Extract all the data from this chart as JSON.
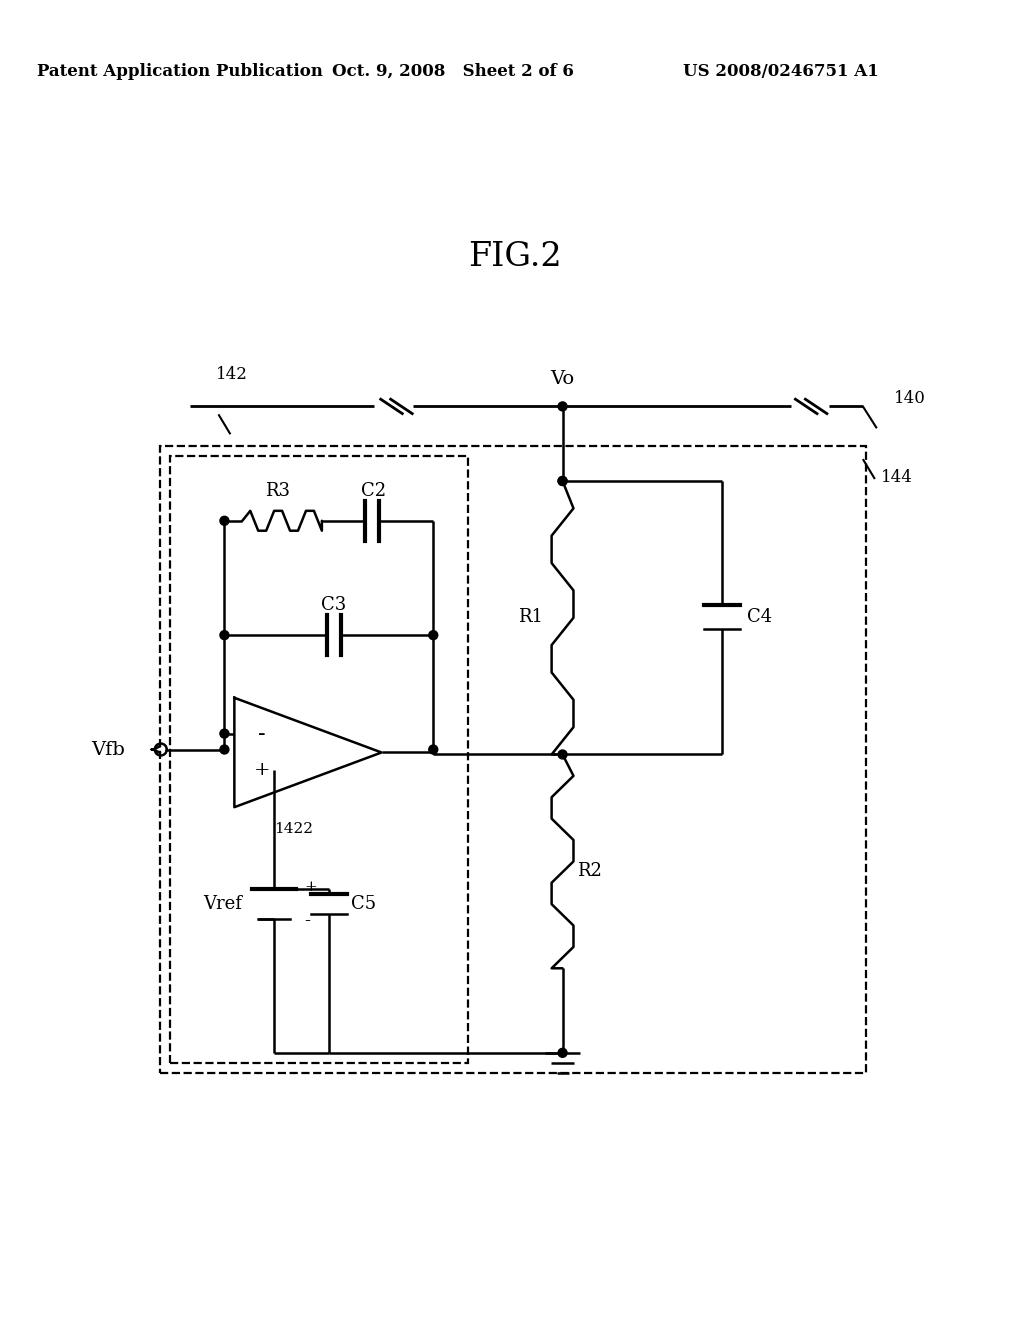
{
  "header_left": "Patent Application Publication",
  "header_mid": "Oct. 9, 2008   Sheet 2 of 6",
  "header_right": "US 2008/0246751 A1",
  "fig_label": "FIG.2",
  "bg_color": "#ffffff",
  "lc": "#000000",
  "labels": {
    "Vo": "Vo",
    "Vfb": "Vfb",
    "Vref": "Vref",
    "R1": "R1",
    "R2": "R2",
    "R3": "R3",
    "C2": "C2",
    "C3": "C3",
    "C4": "C4",
    "C5": "C5",
    "n140": "140",
    "n142": "142",
    "n144": "144",
    "n1422": "1422"
  }
}
